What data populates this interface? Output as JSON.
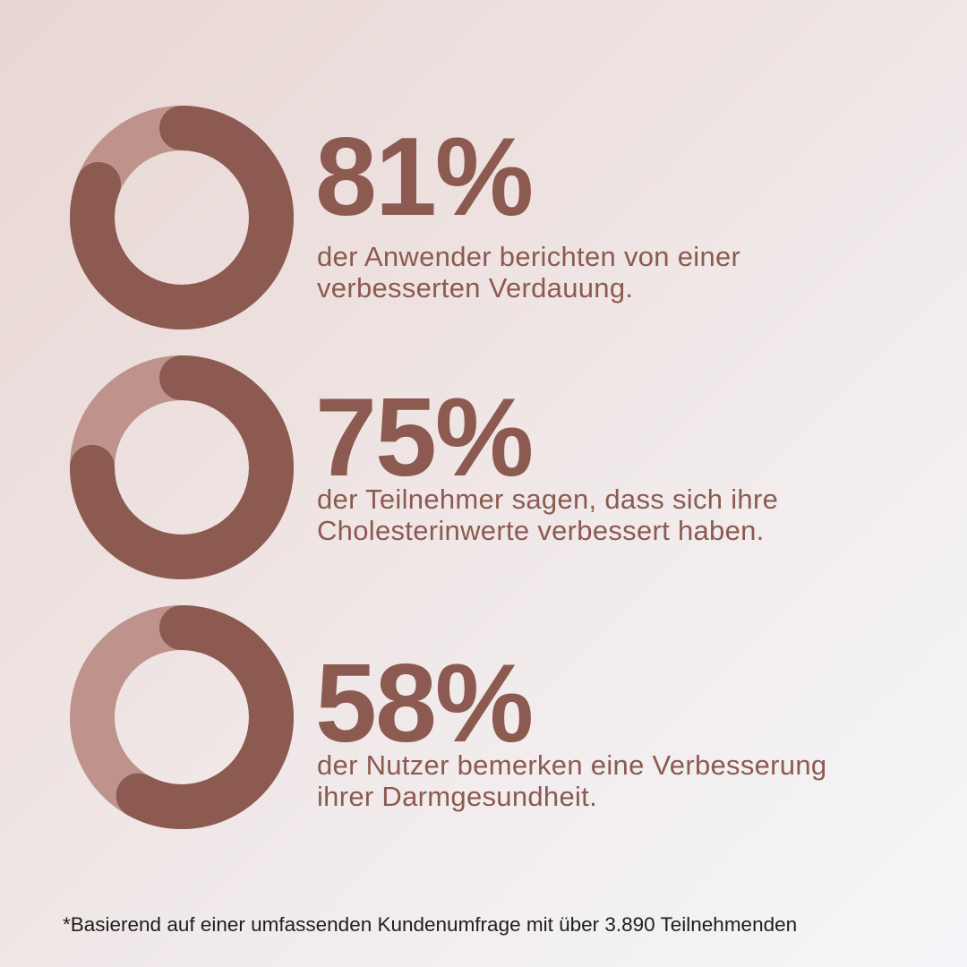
{
  "colors": {
    "accent": "#8c5a50",
    "track": "#bd938b",
    "footnote_text": "#1e1e1e"
  },
  "chart_data": [
    {
      "type": "pie",
      "variant": "donut",
      "value": 81,
      "title": "81%",
      "annotations": [
        "der Anwender berichten von einer",
        "verbesserten Verdauung."
      ]
    },
    {
      "type": "pie",
      "variant": "donut",
      "value": 75,
      "title": "75%",
      "annotations": [
        "der Teilnehmer sagen, dass sich ihre",
        "Cholesterinwerte verbessert haben."
      ]
    },
    {
      "type": "pie",
      "variant": "donut",
      "value": 58,
      "title": "58%",
      "annotations": [
        "der Nutzer bemerken eine Verbesserung",
        "ihrer Darmgesundheit."
      ]
    }
  ],
  "footnote": "*Basierend auf einer umfassenden Kundenumfrage mit über 3.890 Teilnehmenden"
}
